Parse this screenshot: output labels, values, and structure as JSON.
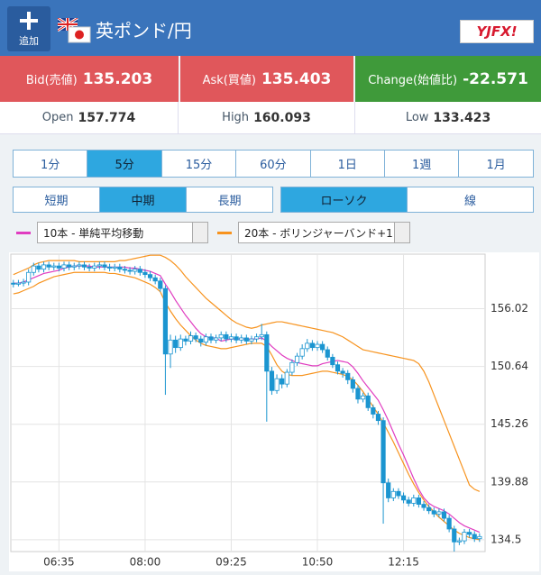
{
  "header": {
    "add_button": "追加",
    "title": "英ポンド/円",
    "logo": "YJFX!"
  },
  "quotes": {
    "bid": {
      "label": "Bid(売値)",
      "value": "135.203"
    },
    "ask": {
      "label": "Ask(買値)",
      "value": "135.403"
    },
    "change": {
      "label": "Change(始値比)",
      "value": "-22.571"
    }
  },
  "stats": {
    "open": {
      "label": "Open",
      "value": "157.774"
    },
    "high": {
      "label": "High",
      "value": "160.093"
    },
    "low": {
      "label": "Low",
      "value": "133.423"
    }
  },
  "periods": {
    "options": [
      "1分",
      "5分",
      "15分",
      "60分",
      "1日",
      "1週",
      "1月"
    ],
    "selected": 1
  },
  "ranges": {
    "options": [
      "短期",
      "中期",
      "長期"
    ],
    "selected": 1
  },
  "styles": {
    "options": [
      "ローソク",
      "線"
    ],
    "selected": 0
  },
  "indicators": [
    {
      "label": "10本 - 単純平均移動",
      "color": "#e03cc0"
    },
    {
      "label": "20本 - ボリンジャーバンド+1",
      "color": "#f7931e"
    }
  ],
  "chart_data": {
    "type": "candlestick",
    "candle_color": "#1b95d0",
    "categories": [
      null,
      null,
      null,
      null,
      null,
      null,
      null,
      null,
      null,
      "06:35",
      null,
      null,
      null,
      null,
      null,
      null,
      null,
      null,
      null,
      null,
      null,
      null,
      null,
      null,
      null,
      null,
      "08:00",
      null,
      null,
      null,
      null,
      null,
      null,
      null,
      null,
      null,
      null,
      null,
      null,
      null,
      null,
      null,
      null,
      "09:25",
      null,
      null,
      null,
      null,
      null,
      null,
      null,
      null,
      null,
      null,
      null,
      null,
      null,
      null,
      null,
      null,
      "10:50",
      null,
      null,
      null,
      null,
      null,
      null,
      null,
      null,
      null,
      null,
      null,
      null,
      null,
      null,
      null,
      null,
      "12:15",
      null,
      null,
      null,
      null,
      null,
      null,
      null,
      null,
      null,
      null,
      null,
      null,
      null,
      null,
      null
    ],
    "open": [
      158.4,
      158.3,
      158.4,
      158.5,
      159.4,
      160.0,
      159.7,
      160.1,
      159.9,
      160.0,
      159.8,
      160.1,
      159.9,
      160.0,
      160.1,
      159.9,
      159.8,
      160.0,
      160.1,
      159.9,
      159.8,
      159.9,
      159.7,
      159.6,
      159.5,
      159.7,
      159.4,
      159.2,
      158.9,
      158.6,
      157.9,
      151.8,
      153.1,
      152.4,
      153.2,
      153.0,
      153.5,
      153.2,
      152.9,
      153.4,
      153.1,
      153.3,
      153.6,
      153.2,
      153.4,
      153.1,
      153.3,
      153.0,
      153.2,
      153.4,
      153.6,
      150.2,
      148.4,
      149.5,
      149.0,
      150.1,
      151.0,
      151.6,
      152.3,
      152.8,
      152.4,
      152.7,
      152.2,
      151.5,
      150.8,
      150.2,
      150.0,
      149.4,
      148.6,
      147.6,
      147.9,
      146.8,
      146.2,
      145.6,
      139.8,
      138.4,
      139.0,
      138.6,
      138.2,
      137.9,
      138.4,
      137.8,
      137.5,
      137.2,
      136.9,
      137.1,
      136.5,
      135.5,
      134.3,
      134.4,
      135.2,
      135.0,
      134.6
    ],
    "high": [
      158.7,
      158.7,
      158.8,
      159.7,
      160.3,
      160.3,
      160.4,
      160.4,
      160.3,
      160.3,
      160.4,
      160.4,
      160.3,
      160.4,
      160.4,
      160.2,
      160.3,
      160.4,
      160.4,
      160.2,
      160.2,
      160.2,
      160.0,
      159.9,
      160.0,
      160.0,
      159.7,
      159.5,
      159.2,
      158.9,
      158.2,
      153.6,
      153.5,
      153.6,
      153.5,
      153.9,
      153.8,
      153.5,
      153.7,
      153.7,
      153.6,
      153.9,
      153.9,
      153.7,
      153.7,
      153.6,
      153.6,
      153.5,
      153.7,
      154.6,
      153.9,
      150.6,
      149.9,
      149.9,
      150.4,
      151.3,
      151.9,
      152.7,
      153.2,
      153.1,
      153.0,
      153.0,
      152.5,
      151.8,
      151.1,
      150.5,
      150.3,
      149.7,
      148.9,
      148.2,
      148.2,
      147.1,
      146.5,
      145.9,
      140.2,
      139.3,
      139.3,
      138.9,
      138.5,
      138.7,
      138.7,
      138.1,
      137.8,
      137.5,
      137.4,
      137.4,
      136.8,
      135.8,
      134.7,
      135.5,
      135.5,
      135.3,
      135.1
    ],
    "low": [
      158.0,
      158.1,
      158.1,
      158.2,
      159.1,
      159.4,
      159.4,
      159.6,
      159.6,
      159.5,
      159.5,
      159.6,
      159.6,
      159.7,
      159.6,
      159.5,
      159.5,
      159.7,
      159.6,
      159.5,
      159.5,
      159.4,
      159.3,
      159.2,
      159.2,
      159.1,
      158.9,
      158.6,
      158.3,
      157.6,
      148.0,
      150.5,
      151.9,
      152.1,
      152.6,
      152.7,
      152.9,
      152.5,
      152.6,
      152.8,
      152.8,
      153.0,
      152.9,
      152.9,
      152.8,
      152.8,
      152.7,
      152.7,
      152.9,
      153.1,
      145.5,
      148.0,
      148.1,
      148.6,
      148.7,
      149.8,
      150.7,
      151.3,
      152.0,
      152.1,
      152.1,
      151.9,
      151.2,
      150.5,
      149.9,
      149.6,
      149.0,
      148.2,
      147.2,
      147.3,
      146.5,
      145.8,
      145.2,
      136.0,
      138.0,
      138.1,
      138.3,
      137.9,
      137.6,
      137.6,
      137.5,
      137.2,
      136.9,
      136.6,
      136.6,
      136.2,
      135.2,
      133.4,
      134.0,
      134.1,
      134.7,
      134.3,
      134.3
    ],
    "close": [
      158.3,
      158.4,
      158.5,
      159.4,
      160.0,
      159.7,
      160.1,
      159.9,
      160.0,
      159.8,
      160.1,
      159.9,
      160.0,
      160.1,
      159.9,
      159.8,
      160.0,
      160.1,
      159.9,
      159.8,
      159.9,
      159.7,
      159.6,
      159.5,
      159.7,
      159.4,
      159.2,
      158.9,
      158.6,
      157.9,
      151.8,
      153.1,
      152.4,
      153.2,
      153.0,
      153.5,
      153.2,
      152.9,
      153.4,
      153.1,
      153.3,
      153.6,
      153.2,
      153.4,
      153.1,
      153.3,
      153.0,
      153.2,
      153.4,
      153.6,
      150.2,
      148.4,
      149.5,
      149.0,
      150.1,
      151.0,
      151.6,
      152.3,
      152.8,
      152.4,
      152.7,
      152.2,
      151.5,
      150.8,
      150.2,
      150.0,
      149.4,
      148.6,
      147.6,
      147.9,
      146.8,
      146.2,
      145.6,
      139.8,
      138.4,
      139.0,
      138.6,
      138.2,
      137.9,
      138.4,
      137.8,
      137.5,
      137.2,
      136.9,
      137.1,
      136.5,
      135.5,
      134.3,
      134.4,
      135.2,
      135.0,
      134.6,
      134.8
    ],
    "ma": {
      "color": "#e03cc0",
      "values": [
        158.4,
        158.4,
        158.5,
        158.7,
        158.9,
        159.1,
        159.3,
        159.4,
        159.5,
        159.6,
        159.8,
        159.9,
        160.0,
        160.0,
        160.0,
        160.0,
        159.9,
        159.9,
        159.9,
        159.9,
        159.9,
        159.9,
        159.9,
        159.8,
        159.8,
        159.7,
        159.6,
        159.5,
        159.3,
        159.1,
        158.3,
        157.6,
        156.8,
        156.1,
        155.4,
        154.8,
        154.2,
        153.7,
        153.4,
        153.3,
        153.3,
        153.0,
        153.1,
        153.2,
        153.2,
        153.2,
        153.2,
        153.2,
        153.2,
        153.3,
        153.0,
        152.5,
        152.1,
        151.7,
        151.4,
        151.2,
        151.0,
        150.9,
        150.8,
        150.7,
        150.7,
        150.9,
        151.0,
        151.1,
        151.2,
        151.1,
        151.0,
        150.6,
        150.0,
        149.3,
        148.7,
        148.1,
        147.5,
        146.6,
        145.6,
        144.5,
        143.4,
        142.4,
        141.3,
        140.2,
        139.2,
        138.4,
        137.9,
        137.6,
        137.4,
        137.2,
        136.9,
        136.5,
        136.1,
        135.8,
        135.6,
        135.4,
        135.2
      ]
    },
    "bb_upper": {
      "color": "#f7931e",
      "values": [
        159.2,
        159.4,
        159.6,
        159.8,
        160.1,
        160.3,
        160.4,
        160.5,
        160.5,
        160.5,
        160.5,
        160.5,
        160.5,
        160.4,
        160.4,
        160.4,
        160.4,
        160.4,
        160.4,
        160.4,
        160.4,
        160.5,
        160.5,
        160.6,
        160.7,
        160.8,
        160.9,
        161.0,
        161.0,
        161.0,
        160.8,
        160.5,
        160.1,
        159.6,
        159.0,
        158.5,
        158.0,
        157.5,
        157.0,
        156.6,
        156.2,
        155.8,
        155.4,
        155.0,
        154.7,
        154.5,
        154.3,
        154.2,
        154.3,
        154.5,
        154.6,
        154.7,
        154.8,
        154.8,
        154.7,
        154.6,
        154.5,
        154.4,
        154.3,
        154.2,
        154.1,
        154.0,
        153.9,
        153.8,
        153.6,
        153.4,
        153.1,
        152.8,
        152.5,
        152.2,
        152.1,
        152.0,
        151.9,
        151.8,
        151.7,
        151.6,
        151.5,
        151.4,
        151.3,
        151.2,
        150.9,
        150.2,
        149.2,
        148.0,
        146.8,
        145.6,
        144.4,
        143.2,
        142.0,
        140.8,
        139.6,
        139.2,
        139.0
      ]
    },
    "bb_lower": {
      "color": "#f7931e",
      "values": [
        157.4,
        157.5,
        157.7,
        157.9,
        158.1,
        158.4,
        158.6,
        158.8,
        159.0,
        159.1,
        159.2,
        159.3,
        159.4,
        159.4,
        159.4,
        159.4,
        159.4,
        159.4,
        159.4,
        159.3,
        159.3,
        159.2,
        159.1,
        159.0,
        158.9,
        158.7,
        158.5,
        158.3,
        158.0,
        157.6,
        156.6,
        155.8,
        155.1,
        154.5,
        154.0,
        153.5,
        153.1,
        152.8,
        152.6,
        152.5,
        152.4,
        152.3,
        152.3,
        152.4,
        152.5,
        152.6,
        152.7,
        152.8,
        152.8,
        152.8,
        152.5,
        151.7,
        150.8,
        150.2,
        149.9,
        149.8,
        149.8,
        149.8,
        149.9,
        150.0,
        150.1,
        150.2,
        150.2,
        150.1,
        150.0,
        149.9,
        149.7,
        149.4,
        148.9,
        148.3,
        147.6,
        146.9,
        146.2,
        145.4,
        144.5,
        143.6,
        142.6,
        141.6,
        140.6,
        139.7,
        138.9,
        138.2,
        137.6,
        137.1,
        136.6,
        136.2,
        135.8,
        135.4,
        135.1,
        134.9,
        134.7,
        134.6,
        134.5
      ]
    },
    "ylim": [
      133.4,
      161.1
    ],
    "yticks": [
      156.02,
      150.64,
      145.26,
      139.88,
      134.5
    ],
    "grid": true
  }
}
